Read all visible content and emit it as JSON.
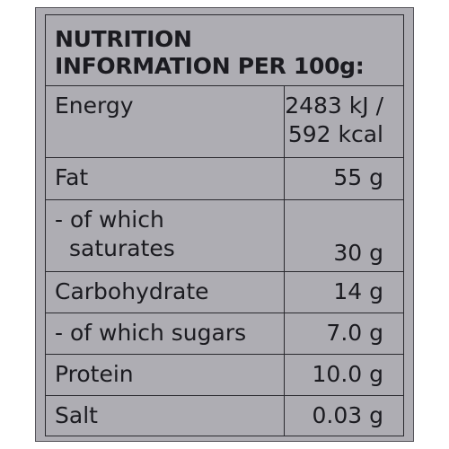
{
  "heading": {
    "line1": "NUTRITION",
    "line2": "INFORMATION PER 100g:"
  },
  "rows": [
    {
      "label": "Energy",
      "value_line1": "2483 kJ /",
      "value_line2": "592 kcal"
    },
    {
      "label": "Fat",
      "value": "55 g"
    },
    {
      "label_line1": "- of which",
      "label_line2": "saturates",
      "value": "30 g"
    },
    {
      "label": "Carbohydrate",
      "value": "14 g"
    },
    {
      "label": "- of which sugars",
      "value": "7.0 g"
    },
    {
      "label": "Protein",
      "value": "10.0 g"
    },
    {
      "label": "Salt",
      "value": "0.03 g"
    }
  ]
}
